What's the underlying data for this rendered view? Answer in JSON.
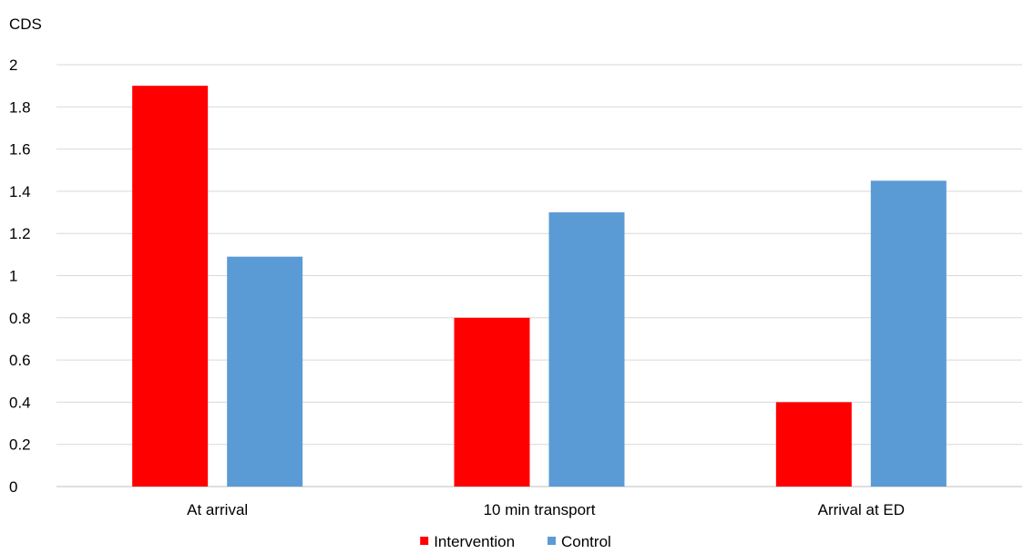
{
  "chart_data": {
    "type": "bar",
    "title": "",
    "xlabel": "",
    "ylabel": "CDS",
    "categories": [
      "At arrival",
      "10 min transport",
      "Arrival at ED"
    ],
    "series": [
      {
        "name": "Intervention",
        "color": "#ff0000",
        "values": [
          1.9,
          0.8,
          0.4
        ]
      },
      {
        "name": "Control",
        "color": "#5b9bd5",
        "values": [
          1.09,
          1.3,
          1.45
        ]
      }
    ],
    "ylim": [
      0,
      2
    ],
    "yticks": [
      "0",
      "0.2",
      "0.4",
      "0.6",
      "0.8",
      "1",
      "1.2",
      "1.4",
      "1.6",
      "1.8",
      "2"
    ],
    "grid": true,
    "legend_position": "bottom"
  }
}
